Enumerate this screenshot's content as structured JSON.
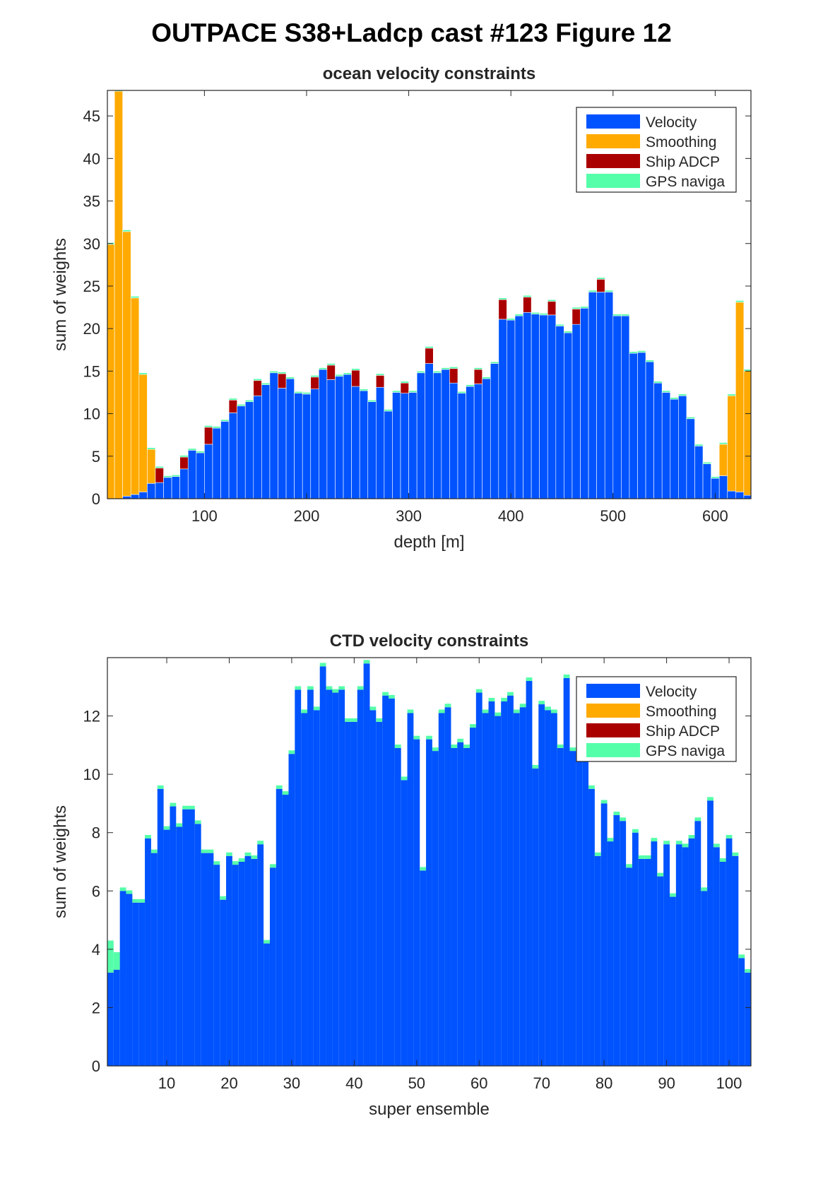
{
  "figure_title": "OUTPACE S38+Ladcp cast #123  Figure 12",
  "colors": {
    "velocity": "#0053ff",
    "smoothing": "#ffaa00",
    "ship_adcp": "#aa0000",
    "gps": "#55ffaa"
  },
  "chart_data": [
    {
      "type": "bar",
      "stacked": true,
      "title": "ocean velocity constraints",
      "xlabel": "depth [m]",
      "ylabel": "sum of weights",
      "xlim": [
        5,
        635
      ],
      "ylim": [
        0,
        48
      ],
      "xticks": [
        100,
        200,
        300,
        400,
        500,
        600
      ],
      "yticks": [
        0,
        5,
        10,
        15,
        20,
        25,
        30,
        35,
        40,
        45
      ],
      "legend_location": "top-right",
      "legend": [
        "Velocity",
        "Smoothing",
        "Ship ADCP",
        "GPS naviga"
      ],
      "bar_width": 8,
      "x": [
        8,
        16,
        24,
        32,
        40,
        48,
        56,
        64,
        72,
        80,
        88,
        96,
        104,
        112,
        120,
        128,
        136,
        144,
        152,
        160,
        168,
        176,
        184,
        192,
        200,
        208,
        216,
        224,
        232,
        240,
        248,
        256,
        264,
        272,
        280,
        288,
        296,
        304,
        312,
        320,
        328,
        336,
        344,
        352,
        360,
        368,
        376,
        384,
        392,
        400,
        408,
        416,
        424,
        432,
        440,
        448,
        456,
        464,
        472,
        480,
        488,
        496,
        504,
        512,
        520,
        528,
        536,
        544,
        552,
        560,
        568,
        576,
        584,
        592,
        600,
        608,
        616,
        624,
        632
      ],
      "series": [
        {
          "name": "Velocity",
          "values": [
            0,
            0,
            0.3,
            0.5,
            0.8,
            1.8,
            1.9,
            2.5,
            2.6,
            3.5,
            5.7,
            5.4,
            6.4,
            8.3,
            9.1,
            10.1,
            10.9,
            11.4,
            12.1,
            13.4,
            14.8,
            13,
            14.1,
            12.4,
            12.3,
            12.9,
            15.2,
            14,
            14.4,
            14.6,
            13.2,
            12.7,
            11.4,
            13.1,
            10.3,
            12.5,
            12.4,
            12.5,
            14.8,
            15.9,
            14.8,
            15.2,
            13.6,
            12.4,
            13.2,
            13.5,
            14.1,
            15.9,
            21.1,
            21,
            21.5,
            21.9,
            21.7,
            21.6,
            21.6,
            20.3,
            19.5,
            20.5,
            22.4,
            24.3,
            24.3,
            24.3,
            21.5,
            21.5,
            17.1,
            17.2,
            16.1,
            13.6,
            12.5,
            11.7,
            12.1,
            9.4,
            6.2,
            4.1,
            2.4,
            2.7,
            0.9,
            0.8,
            0.4
          ]
        },
        {
          "name": "Smoothing",
          "values": [
            29.9,
            47.9,
            31.1,
            23.1,
            13.8,
            4,
            0,
            0,
            0,
            0,
            0,
            0,
            0,
            0,
            0,
            0,
            0,
            0,
            0,
            0,
            0,
            0,
            0,
            0,
            0,
            0,
            0,
            0,
            0,
            0,
            0,
            0,
            0,
            0,
            0,
            0,
            0,
            0,
            0,
            0,
            0,
            0,
            0,
            0,
            0,
            0,
            0,
            0,
            0,
            0,
            0,
            0,
            0,
            0,
            0,
            0,
            0,
            0,
            0,
            0,
            0,
            0,
            0,
            0,
            0,
            0,
            0,
            0,
            0,
            0,
            0,
            0,
            0,
            0,
            0,
            3.7,
            11.2,
            22.3,
            14.6
          ]
        },
        {
          "name": "Ship ADCP",
          "values": [
            0,
            0,
            0,
            0,
            0,
            0,
            1.7,
            0,
            0,
            1.4,
            0,
            0,
            2,
            0,
            0,
            1.5,
            0,
            0,
            1.8,
            0,
            0,
            1.7,
            0,
            0,
            0,
            1.4,
            0,
            1.7,
            0,
            0,
            1.9,
            0,
            0,
            1.4,
            0,
            0,
            1.2,
            0,
            0,
            1.8,
            0,
            0,
            1.7,
            0,
            0,
            1.7,
            0,
            0,
            2.3,
            0,
            0,
            1.8,
            0,
            0,
            1.6,
            0,
            0,
            1.8,
            0,
            0,
            1.5,
            0,
            0,
            0,
            0,
            0,
            0,
            0,
            0,
            0,
            0,
            0,
            0,
            0,
            0,
            0,
            0,
            0,
            0
          ]
        },
        {
          "name": "GPS naviga",
          "values": [
            0.2,
            0.2,
            0.2,
            0.2,
            0.2,
            0.2,
            0.2,
            0.2,
            0.2,
            0.2,
            0.2,
            0.2,
            0.2,
            0.2,
            0.2,
            0.2,
            0.2,
            0.2,
            0.2,
            0.2,
            0.2,
            0.2,
            0.2,
            0.2,
            0.2,
            0.2,
            0.2,
            0.2,
            0.2,
            0.2,
            0.2,
            0.2,
            0.2,
            0.2,
            0.2,
            0.2,
            0.2,
            0.2,
            0.2,
            0.2,
            0.2,
            0.2,
            0.2,
            0.2,
            0.2,
            0.2,
            0.2,
            0.2,
            0.2,
            0.2,
            0.2,
            0.2,
            0.2,
            0.2,
            0.2,
            0.2,
            0.2,
            0.2,
            0.2,
            0.2,
            0.2,
            0.2,
            0.2,
            0.2,
            0.2,
            0.2,
            0.2,
            0.2,
            0.2,
            0.2,
            0.2,
            0.2,
            0.2,
            0.2,
            0.2,
            0.2,
            0.2,
            0.2,
            0.2
          ]
        }
      ]
    },
    {
      "type": "bar",
      "stacked": true,
      "title": "CTD velocity constraints",
      "xlabel": "super ensemble",
      "ylabel": "sum of weights",
      "xlim": [
        0.5,
        103.5
      ],
      "ylim": [
        0,
        14
      ],
      "xticks": [
        10,
        20,
        30,
        40,
        50,
        60,
        70,
        80,
        90,
        100
      ],
      "yticks": [
        0,
        2,
        4,
        6,
        8,
        10,
        12
      ],
      "legend_location": "top-right",
      "legend": [
        "Velocity",
        "Smoothing",
        "Ship ADCP",
        "GPS naviga"
      ],
      "bar_width": 1,
      "x": [
        1,
        2,
        3,
        4,
        5,
        6,
        7,
        8,
        9,
        10,
        11,
        12,
        13,
        14,
        15,
        16,
        17,
        18,
        19,
        20,
        21,
        22,
        23,
        24,
        25,
        26,
        27,
        28,
        29,
        30,
        31,
        32,
        33,
        34,
        35,
        36,
        37,
        38,
        39,
        40,
        41,
        42,
        43,
        44,
        45,
        46,
        47,
        48,
        49,
        50,
        51,
        52,
        53,
        54,
        55,
        56,
        57,
        58,
        59,
        60,
        61,
        62,
        63,
        64,
        65,
        66,
        67,
        68,
        69,
        70,
        71,
        72,
        73,
        74,
        75,
        76,
        77,
        78,
        79,
        80,
        81,
        82,
        83,
        84,
        85,
        86,
        87,
        88,
        89,
        90,
        91,
        92,
        93,
        94,
        95,
        96,
        97,
        98,
        99,
        100,
        101,
        102,
        103
      ],
      "series": [
        {
          "name": "Velocity",
          "values": [
            3.2,
            3.3,
            6,
            5.9,
            5.6,
            5.6,
            7.8,
            7.3,
            9.5,
            8.1,
            8.9,
            8.2,
            8.8,
            8.8,
            8.3,
            7.3,
            7.3,
            6.9,
            5.7,
            7.2,
            6.9,
            7,
            7.2,
            7.1,
            7.6,
            4.2,
            6.8,
            9.5,
            9.3,
            10.7,
            12.9,
            12.1,
            12.9,
            12.2,
            13.7,
            12.9,
            12.8,
            12.9,
            11.8,
            11.8,
            12.9,
            13.8,
            12.2,
            11.8,
            12.7,
            12.6,
            10.9,
            9.8,
            12.1,
            11.2,
            6.7,
            11.2,
            10.8,
            12.1,
            12.3,
            10.9,
            11.1,
            10.9,
            11.6,
            12.8,
            12.1,
            12.5,
            12,
            12.5,
            12.7,
            12.1,
            12.3,
            13.2,
            10.2,
            12.4,
            12.2,
            12.1,
            10.9,
            13.3,
            10.8,
            10.8,
            10.6,
            9.5,
            7.2,
            9,
            7.7,
            8.6,
            8.4,
            6.8,
            8,
            7.1,
            7.1,
            7.7,
            6.5,
            7.6,
            5.8,
            7.6,
            7.5,
            7.8,
            8.4,
            6,
            9.1,
            7.5,
            7,
            7.8,
            7.2,
            3.7,
            3.2
          ]
        },
        {
          "name": "Smoothing",
          "values": [
            0,
            0,
            0,
            0,
            0,
            0,
            0,
            0,
            0,
            0,
            0,
            0,
            0,
            0,
            0,
            0,
            0,
            0,
            0,
            0,
            0,
            0,
            0,
            0,
            0,
            0,
            0,
            0,
            0,
            0,
            0,
            0,
            0,
            0,
            0,
            0,
            0,
            0,
            0,
            0,
            0,
            0,
            0,
            0,
            0,
            0,
            0,
            0,
            0,
            0,
            0,
            0,
            0,
            0,
            0,
            0,
            0,
            0,
            0,
            0,
            0,
            0,
            0,
            0,
            0,
            0,
            0,
            0,
            0,
            0,
            0,
            0,
            0,
            0,
            0,
            0,
            0,
            0,
            0,
            0,
            0,
            0,
            0,
            0,
            0,
            0,
            0,
            0,
            0,
            0,
            0,
            0,
            0,
            0,
            0,
            0,
            0,
            0,
            0,
            0,
            0,
            0,
            0
          ]
        },
        {
          "name": "Ship ADCP",
          "values": [
            0,
            0,
            0,
            0,
            0,
            0,
            0,
            0,
            0,
            0,
            0,
            0,
            0,
            0,
            0,
            0,
            0,
            0,
            0,
            0,
            0,
            0,
            0,
            0,
            0,
            0,
            0,
            0,
            0,
            0,
            0,
            0,
            0,
            0,
            0,
            0,
            0,
            0,
            0,
            0,
            0,
            0,
            0,
            0,
            0,
            0,
            0,
            0,
            0,
            0,
            0,
            0,
            0,
            0,
            0,
            0,
            0,
            0,
            0,
            0,
            0,
            0,
            0,
            0,
            0,
            0,
            0,
            0,
            0,
            0,
            0,
            0,
            0,
            0,
            0,
            0,
            0,
            0,
            0,
            0,
            0,
            0,
            0,
            0,
            0,
            0,
            0,
            0,
            0,
            0,
            0,
            0,
            0,
            0,
            0,
            0,
            0,
            0,
            0,
            0,
            0,
            0,
            0
          ]
        },
        {
          "name": "GPS naviga",
          "values": [
            1.1,
            0.6,
            0.12,
            0.12,
            0.12,
            0.12,
            0.12,
            0.12,
            0.12,
            0.12,
            0.12,
            0.12,
            0.12,
            0.12,
            0.12,
            0.12,
            0.12,
            0.12,
            0.12,
            0.12,
            0.12,
            0.12,
            0.12,
            0.12,
            0.12,
            0.12,
            0.12,
            0.12,
            0.12,
            0.12,
            0.12,
            0.12,
            0.12,
            0.12,
            0.12,
            0.12,
            0.12,
            0.12,
            0.12,
            0.12,
            0.12,
            0.12,
            0.12,
            0.12,
            0.12,
            0.12,
            0.12,
            0.12,
            0.12,
            0.12,
            0.12,
            0.12,
            0.12,
            0.12,
            0.12,
            0.12,
            0.12,
            0.12,
            0.12,
            0.12,
            0.12,
            0.12,
            0.12,
            0.12,
            0.12,
            0.12,
            0.12,
            0.12,
            0.12,
            0.12,
            0.12,
            0.12,
            0.12,
            0.12,
            0.12,
            0.12,
            0.12,
            0.12,
            0.12,
            0.12,
            0.12,
            0.12,
            0.12,
            0.12,
            0.12,
            0.12,
            0.12,
            0.12,
            0.12,
            0.12,
            0.12,
            0.12,
            0.12,
            0.12,
            0.12,
            0.12,
            0.12,
            0.12,
            0.12,
            0.12,
            0.12,
            0.12,
            0.12
          ]
        }
      ]
    }
  ]
}
